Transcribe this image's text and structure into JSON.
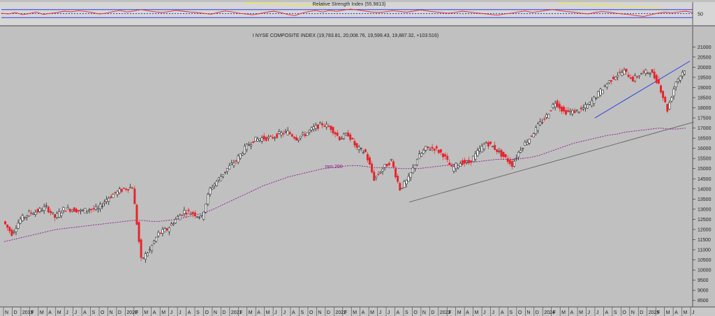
{
  "chart_data": [
    {
      "type": "line",
      "title": "Relative Strength Index (55.9813)",
      "ylim": [
        0,
        100
      ],
      "reference_lines": [
        70,
        50,
        30
      ],
      "yticks": [
        "50"
      ],
      "series": [
        {
          "values": [
            52,
            48,
            55,
            45,
            50,
            58,
            46,
            51,
            55,
            62,
            59,
            64,
            61,
            55,
            48,
            52,
            60,
            66,
            58,
            63,
            70,
            64,
            59,
            55,
            60,
            66,
            62,
            58,
            55,
            51,
            47,
            55,
            63,
            59,
            52,
            48,
            44,
            50,
            57,
            62,
            55,
            46,
            40,
            52,
            60,
            65,
            58,
            66,
            61,
            67,
            72,
            68,
            63,
            58,
            55,
            59,
            64,
            61,
            57,
            62,
            68,
            63,
            59,
            55,
            52,
            56,
            62,
            58,
            53,
            50,
            46,
            42,
            48,
            52,
            58,
            63,
            56,
            60,
            66,
            70,
            64,
            60,
            57,
            52,
            48,
            55,
            60,
            57,
            52,
            48,
            45,
            40,
            36,
            44,
            52,
            57,
            54,
            58,
            62,
            56
          ]
        }
      ],
      "colors": {
        "line": "#e8232a",
        "bands": "#2f3fe0",
        "divergence": "#f2ea2a"
      }
    },
    {
      "type": "line",
      "title": "I NYSE COMPOSITE INDEX (19,783.81, 20,008.76, 19,599.43, 19,887.32, +103.516)",
      "ylim": [
        8250,
        21250
      ],
      "yticks": [
        8500,
        9000,
        9500,
        10000,
        10500,
        11000,
        11500,
        12000,
        12500,
        13000,
        13500,
        14000,
        14500,
        15000,
        15500,
        16000,
        16500,
        17000,
        17500,
        18000,
        18500,
        19000,
        19500,
        20000,
        20500,
        21000
      ],
      "xticks": [
        "N",
        "D",
        "2019",
        "F",
        "M",
        "A",
        "M",
        "J",
        "J",
        "A",
        "S",
        "O",
        "N",
        "D",
        "2020",
        "F",
        "M",
        "A",
        "M",
        "J",
        "J",
        "A",
        "S",
        "O",
        "N",
        "D",
        "2021",
        "F",
        "M",
        "A",
        "M",
        "J",
        "J",
        "A",
        "S",
        "O",
        "N",
        "D",
        "2022",
        "F",
        "M",
        "A",
        "M",
        "J",
        "J",
        "A",
        "S",
        "O",
        "N",
        "D",
        "2023",
        "F",
        "M",
        "A",
        "M",
        "J",
        "J",
        "A",
        "S",
        "O",
        "N",
        "D",
        "2024",
        "F",
        "M",
        "A",
        "M",
        "J",
        "J",
        "A",
        "S",
        "O",
        "N",
        "D",
        "2025",
        "F",
        "M",
        "A",
        "M",
        "J"
      ],
      "x": [
        "2018-11",
        "2018-12",
        "2019-01",
        "2019-02",
        "2019-03",
        "2019-04",
        "2019-05",
        "2019-06",
        "2019-07",
        "2019-08",
        "2019-09",
        "2019-10",
        "2019-11",
        "2019-12",
        "2020-01",
        "2020-02",
        "2020-03",
        "2020-04",
        "2020-05",
        "2020-06",
        "2020-07",
        "2020-08",
        "2020-09",
        "2020-10",
        "2020-11",
        "2020-12",
        "2021-01",
        "2021-02",
        "2021-03",
        "2021-04",
        "2021-05",
        "2021-06",
        "2021-07",
        "2021-08",
        "2021-09",
        "2021-10",
        "2021-11",
        "2021-12",
        "2022-01",
        "2022-02",
        "2022-03",
        "2022-04",
        "2022-05",
        "2022-06",
        "2022-07",
        "2022-08",
        "2022-09",
        "2022-10",
        "2022-11",
        "2022-12",
        "2023-01",
        "2023-02",
        "2023-03",
        "2023-04",
        "2023-05",
        "2023-06",
        "2023-07",
        "2023-08",
        "2023-09",
        "2023-10",
        "2023-11",
        "2023-12",
        "2024-01",
        "2024-02",
        "2024-03",
        "2024-04",
        "2024-05",
        "2024-06",
        "2024-07",
        "2024-08",
        "2024-09",
        "2024-10",
        "2024-11",
        "2024-12",
        "2025-01",
        "2025-02",
        "2025-03",
        "2025-04",
        "2025-05",
        "2025-06"
      ],
      "series": [
        {
          "name": "price",
          "values": [
            12400,
            11800,
            12500,
            12800,
            12900,
            13100,
            12600,
            13000,
            13000,
            12900,
            13000,
            13000,
            13500,
            13800,
            14000,
            14100,
            10500,
            11000,
            11800,
            12000,
            12500,
            12900,
            12800,
            12600,
            14000,
            14500,
            15000,
            15400,
            16000,
            16400,
            16500,
            16500,
            16700,
            16800,
            16500,
            16700,
            17000,
            17200,
            17000,
            16500,
            16700,
            16000,
            15800,
            14500,
            15000,
            15400,
            14000,
            14500,
            15500,
            16000,
            16000,
            15700,
            15000,
            15300,
            15300,
            15800,
            16300,
            16000,
            15600,
            15200,
            16000,
            16500,
            17100,
            17600,
            18300,
            17800,
            17800,
            17900,
            18200,
            18700,
            19200,
            19600,
            19800,
            19400,
            19700,
            19800,
            19200,
            17900,
            19300,
            19900
          ]
        },
        {
          "name": "mm 200",
          "values": [
            11400,
            11500,
            11600,
            11700,
            11800,
            11900,
            12000,
            12050,
            12100,
            12150,
            12200,
            12250,
            12300,
            12350,
            12400,
            12450,
            12450,
            12400,
            12400,
            12450,
            12500,
            12600,
            12700,
            12800,
            12950,
            13150,
            13350,
            13550,
            13750,
            13950,
            14150,
            14300,
            14450,
            14600,
            14700,
            14800,
            14900,
            15000,
            15050,
            15100,
            15150,
            15150,
            15100,
            15050,
            15050,
            15050,
            15000,
            15000,
            15000,
            15050,
            15100,
            15150,
            15200,
            15250,
            15300,
            15350,
            15400,
            15450,
            15450,
            15450,
            15500,
            15550,
            15650,
            15800,
            15950,
            16100,
            16250,
            16350,
            16450,
            16550,
            16650,
            16700,
            16800,
            16850,
            16900,
            16950,
            17000,
            16950,
            16950,
            17000
          ]
        }
      ],
      "annotations": [
        "mm 200"
      ],
      "colors": {
        "up": "#111111",
        "down": "#e8232a",
        "mm200": "#8a1a8c",
        "trend_blue": "#2f3fe0",
        "trend_grey": "#555555"
      }
    }
  ]
}
